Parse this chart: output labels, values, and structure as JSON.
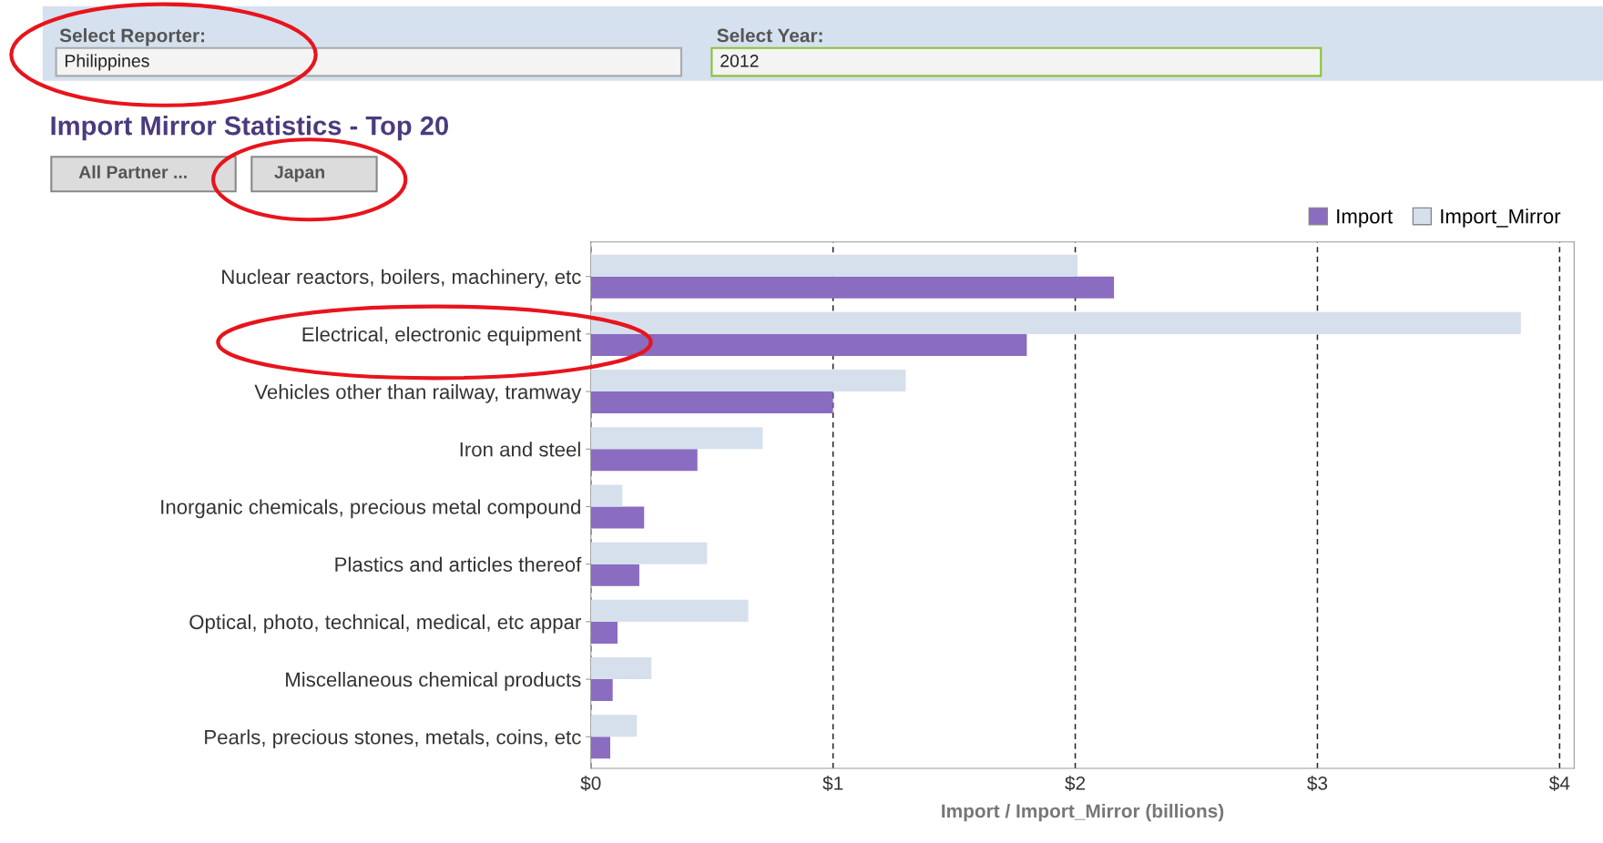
{
  "chart_data": {
    "type": "bar",
    "orientation": "horizontal",
    "title": "Import Mirror Statistics - Top 20",
    "xlabel": "Import / Import_Mirror (billions)",
    "categories": [
      "Nuclear reactors, boilers, machinery, etc",
      "Electrical, electronic equipment",
      "Vehicles other than railway, tramway",
      "Iron and steel",
      "Inorganic chemicals, precious metal compound",
      "Plastics and articles thereof",
      "Optical, photo, technical, medical, etc appar",
      "Miscellaneous chemical products",
      "Pearls, precious stones, metals, coins, etc"
    ],
    "series": [
      {
        "name": "Import",
        "color": "#8a6cc0",
        "values": [
          2.16,
          1.8,
          1.0,
          0.44,
          0.22,
          0.2,
          0.11,
          0.09,
          0.08
        ]
      },
      {
        "name": "Import_Mirror",
        "color": "#d6e0ec",
        "values": [
          2.01,
          3.84,
          1.3,
          0.71,
          0.13,
          0.48,
          0.65,
          0.25,
          0.19
        ]
      }
    ],
    "xlim": [
      0,
      4.06
    ],
    "xticks": [
      {
        "value": 0,
        "label": "$0"
      },
      {
        "value": 1,
        "label": "$1"
      },
      {
        "value": 2,
        "label": "$2"
      },
      {
        "value": 3,
        "label": "$3"
      },
      {
        "value": 4,
        "label": "$4"
      }
    ],
    "grid": "x",
    "legend": "top right",
    "annotations": [
      "Select Reporter:",
      "Philippines",
      "Select Year:",
      "2012",
      "All Partner ...",
      "Japan"
    ]
  }
}
